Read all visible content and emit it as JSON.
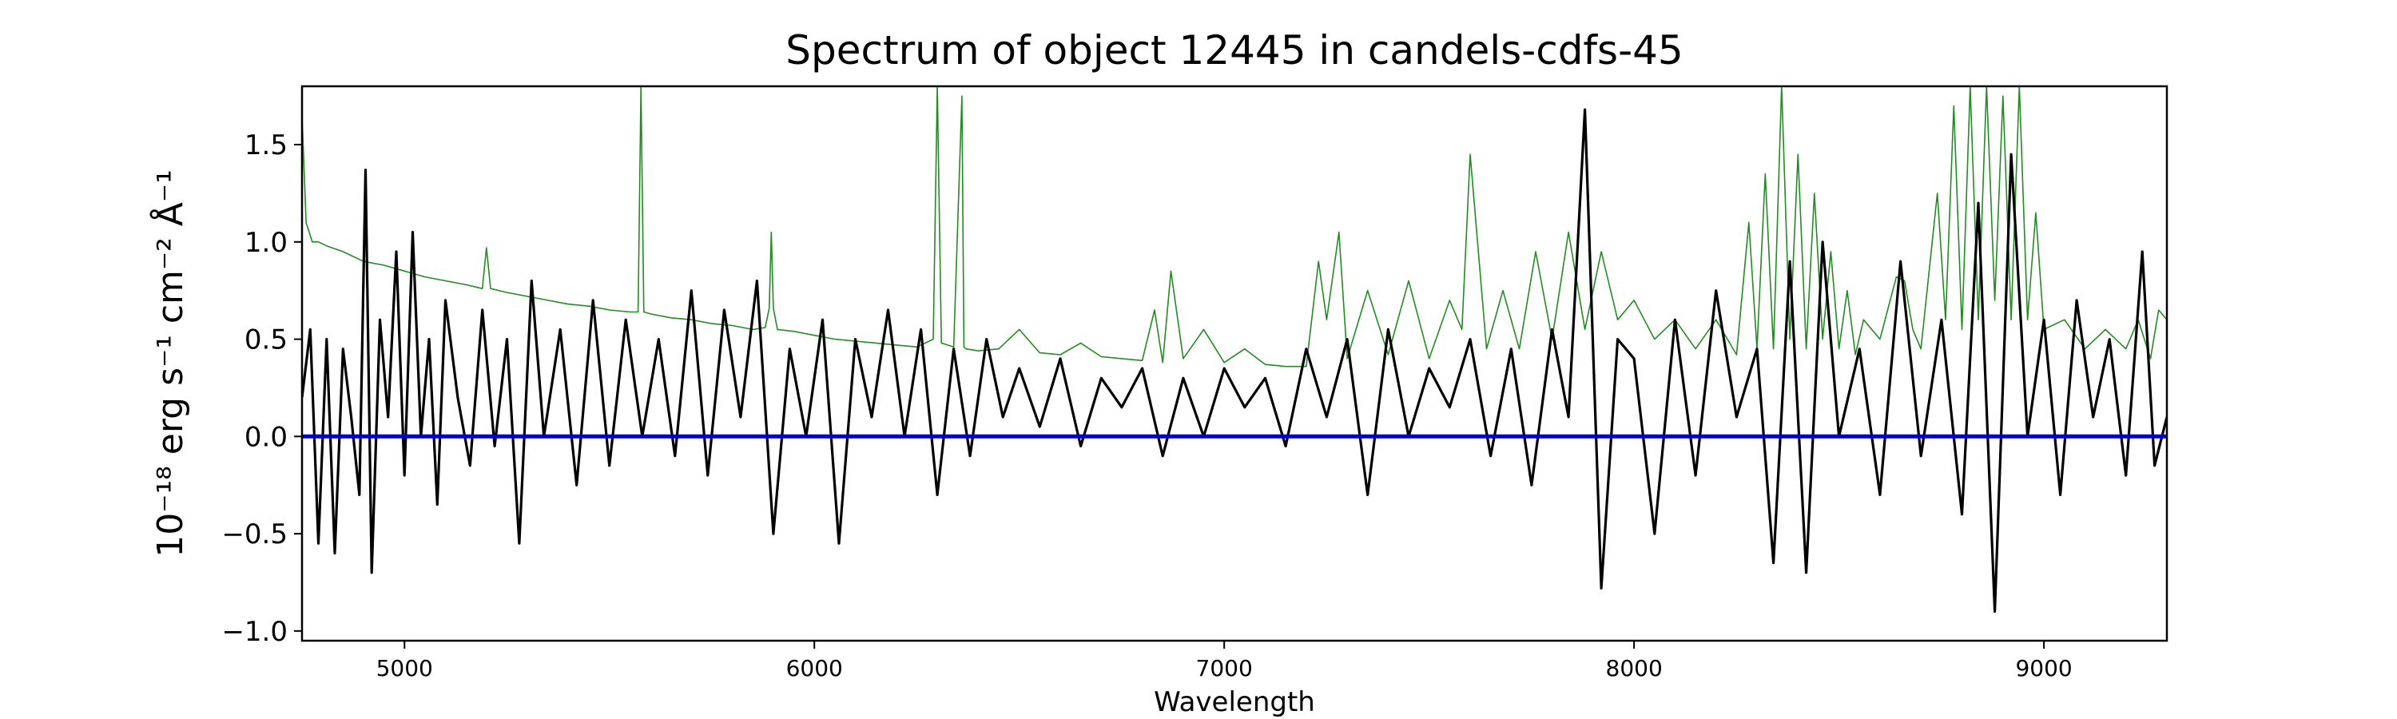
{
  "chart_data": {
    "type": "line",
    "title": "Spectrum of object 12445 in candels-cdfs-45",
    "xlabel": "Wavelength",
    "ylabel": "10⁻¹⁸ erg s⁻¹ cm⁻² Å⁻¹",
    "xlim": [
      4750,
      9300
    ],
    "ylim": [
      -1.05,
      1.8
    ],
    "xticks": [
      5000,
      6000,
      7000,
      8000,
      9000
    ],
    "yticks": [
      -1.0,
      -0.5,
      0.0,
      0.5,
      1.0,
      1.5
    ],
    "ytick_labels": [
      "−1.0",
      "−0.5",
      "0.0",
      "0.5",
      "1.0",
      "1.5"
    ],
    "grid": false,
    "legend": "none",
    "colors": {
      "flux": "#000000",
      "error": "#228b22",
      "zero": "#0000cc"
    },
    "series": [
      {
        "role": "flux",
        "x": [
          4750,
          4770,
          4790,
          4810,
          4830,
          4850,
          4870,
          4890,
          4905,
          4920,
          4940,
          4960,
          4980,
          5000,
          5020,
          5040,
          5060,
          5080,
          5100,
          5130,
          5160,
          5190,
          5220,
          5250,
          5280,
          5310,
          5340,
          5380,
          5420,
          5460,
          5500,
          5540,
          5580,
          5620,
          5660,
          5700,
          5740,
          5780,
          5820,
          5860,
          5900,
          5940,
          5980,
          6020,
          6060,
          6100,
          6140,
          6180,
          6220,
          6260,
          6300,
          6340,
          6380,
          6420,
          6460,
          6500,
          6550,
          6600,
          6650,
          6700,
          6750,
          6800,
          6850,
          6900,
          6950,
          7000,
          7050,
          7100,
          7150,
          7200,
          7250,
          7300,
          7350,
          7400,
          7450,
          7500,
          7550,
          7600,
          7650,
          7700,
          7750,
          7800,
          7840,
          7880,
          7920,
          7960,
          8000,
          8050,
          8100,
          8150,
          8200,
          8250,
          8300,
          8340,
          8380,
          8420,
          8460,
          8500,
          8550,
          8600,
          8650,
          8700,
          8750,
          8800,
          8840,
          8880,
          8920,
          8960,
          9000,
          9040,
          9080,
          9120,
          9160,
          9200,
          9240,
          9270,
          9300
        ],
        "y": [
          0.2,
          0.55,
          -0.55,
          0.5,
          -0.6,
          0.45,
          0.1,
          -0.3,
          1.37,
          -0.7,
          0.6,
          0.1,
          0.95,
          -0.2,
          1.05,
          0.0,
          0.5,
          -0.35,
          0.7,
          0.2,
          -0.15,
          0.65,
          -0.05,
          0.5,
          -0.55,
          0.8,
          0.0,
          0.55,
          -0.25,
          0.7,
          -0.15,
          0.6,
          0.0,
          0.5,
          -0.1,
          0.75,
          -0.2,
          0.65,
          0.1,
          0.8,
          -0.5,
          0.45,
          0.0,
          0.6,
          -0.55,
          0.5,
          0.1,
          0.65,
          0.0,
          0.55,
          -0.3,
          0.45,
          -0.1,
          0.5,
          0.1,
          0.35,
          0.05,
          0.4,
          -0.05,
          0.3,
          0.15,
          0.35,
          -0.1,
          0.3,
          0.0,
          0.35,
          0.15,
          0.3,
          -0.05,
          0.45,
          0.1,
          0.5,
          -0.3,
          0.55,
          0.0,
          0.35,
          0.15,
          0.5,
          -0.1,
          0.45,
          -0.25,
          0.55,
          0.1,
          1.68,
          -0.78,
          0.5,
          0.4,
          -0.5,
          0.6,
          -0.2,
          0.75,
          0.1,
          0.45,
          -0.65,
          0.9,
          -0.7,
          1.0,
          0.0,
          0.45,
          -0.3,
          0.9,
          -0.1,
          0.6,
          -0.4,
          1.2,
          -0.9,
          1.45,
          0.0,
          0.6,
          -0.3,
          0.7,
          0.1,
          0.5,
          -0.2,
          0.95,
          -0.15,
          0.1
        ]
      },
      {
        "role": "error",
        "x": [
          4750,
          4760,
          4775,
          4790,
          4810,
          4850,
          4900,
          4950,
          5000,
          5050,
          5100,
          5150,
          5190,
          5200,
          5210,
          5250,
          5300,
          5350,
          5400,
          5450,
          5500,
          5550,
          5570,
          5577,
          5584,
          5600,
          5650,
          5700,
          5750,
          5800,
          5850,
          5880,
          5890,
          5895,
          5900,
          5910,
          5950,
          6000,
          6050,
          6100,
          6150,
          6200,
          6250,
          6290,
          6300,
          6310,
          6340,
          6360,
          6365,
          6370,
          6400,
          6450,
          6500,
          6550,
          6600,
          6650,
          6700,
          6750,
          6800,
          6830,
          6850,
          6870,
          6900,
          6950,
          7000,
          7050,
          7100,
          7150,
          7200,
          7230,
          7250,
          7280,
          7300,
          7350,
          7400,
          7450,
          7500,
          7550,
          7580,
          7600,
          7640,
          7680,
          7720,
          7760,
          7800,
          7840,
          7880,
          7920,
          7960,
          8000,
          8050,
          8100,
          8150,
          8200,
          8250,
          8280,
          8300,
          8320,
          8340,
          8360,
          8380,
          8400,
          8420,
          8440,
          8460,
          8480,
          8500,
          8520,
          8540,
          8560,
          8600,
          8640,
          8660,
          8680,
          8700,
          8740,
          8760,
          8780,
          8800,
          8820,
          8840,
          8860,
          8880,
          8900,
          8920,
          8940,
          8960,
          8980,
          9000,
          9050,
          9100,
          9150,
          9200,
          9230,
          9260,
          9280,
          9300
        ],
        "y": [
          1.65,
          1.1,
          1.0,
          1.0,
          0.98,
          0.95,
          0.9,
          0.88,
          0.85,
          0.82,
          0.8,
          0.78,
          0.76,
          0.97,
          0.76,
          0.74,
          0.72,
          0.7,
          0.68,
          0.67,
          0.65,
          0.64,
          0.64,
          1.8,
          0.64,
          0.63,
          0.61,
          0.6,
          0.58,
          0.57,
          0.55,
          0.56,
          0.66,
          1.05,
          0.66,
          0.55,
          0.54,
          0.52,
          0.5,
          0.49,
          0.48,
          0.47,
          0.46,
          0.5,
          1.8,
          0.48,
          0.46,
          1.75,
          0.46,
          0.45,
          0.44,
          0.45,
          0.55,
          0.43,
          0.42,
          0.48,
          0.41,
          0.4,
          0.39,
          0.65,
          0.38,
          0.85,
          0.4,
          0.55,
          0.38,
          0.45,
          0.37,
          0.36,
          0.36,
          0.9,
          0.6,
          1.05,
          0.4,
          0.75,
          0.42,
          0.8,
          0.4,
          0.7,
          0.55,
          1.45,
          0.45,
          0.75,
          0.45,
          0.95,
          0.5,
          1.05,
          0.55,
          0.95,
          0.6,
          0.7,
          0.5,
          0.6,
          0.45,
          0.6,
          0.42,
          1.1,
          0.45,
          1.35,
          0.45,
          1.8,
          0.5,
          1.45,
          0.45,
          1.25,
          0.5,
          0.95,
          0.45,
          0.75,
          0.42,
          0.6,
          0.5,
          0.82,
          0.8,
          0.55,
          0.45,
          1.25,
          0.6,
          1.7,
          0.55,
          1.8,
          0.6,
          1.8,
          0.7,
          1.75,
          0.6,
          1.8,
          0.6,
          1.15,
          0.55,
          0.6,
          0.45,
          0.55,
          0.45,
          0.6,
          0.4,
          0.65,
          0.6
        ]
      },
      {
        "role": "zero",
        "x": [
          4750,
          9300
        ],
        "y": [
          0.0,
          0.0
        ]
      }
    ]
  }
}
